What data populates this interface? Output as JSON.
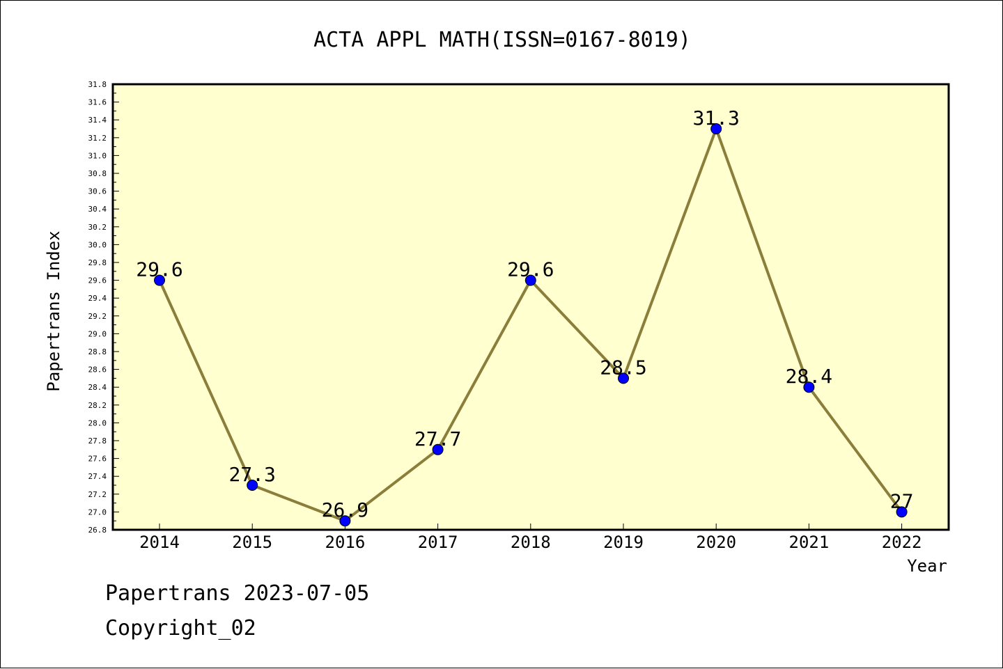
{
  "footer": {
    "date_line": "Papertrans 2023-07-05",
    "copyright": "Copyright_02"
  },
  "colors": {
    "plot_background": "#FFFFD0",
    "line": "#8B7D3A",
    "marker": "#0000FF"
  },
  "chart_data": {
    "type": "line",
    "title": "ACTA APPL MATH(ISSN=0167-8019)",
    "xlabel": "Year",
    "ylabel": "Papertrans Index",
    "categories": [
      "2014",
      "2015",
      "2016",
      "2017",
      "2018",
      "2019",
      "2020",
      "2021",
      "2022"
    ],
    "series": [
      {
        "values": [
          29.6,
          27.3,
          26.9,
          27.7,
          29.6,
          28.5,
          31.3,
          28.4,
          27.0
        ],
        "labels": [
          "29.6",
          "27.3",
          "26.9",
          "27.7",
          "29.6",
          "28.5",
          "31.3",
          "28.4",
          "27"
        ]
      }
    ],
    "ylim": [
      26.8,
      31.8
    ],
    "yticks": [
      "26.8",
      "27.0",
      "27.2",
      "27.4",
      "27.6",
      "27.8",
      "28.0",
      "28.2",
      "28.4",
      "28.6",
      "28.8",
      "29.0",
      "29.2",
      "29.4",
      "29.6",
      "29.8",
      "30.0",
      "30.2",
      "30.4",
      "30.6",
      "30.8",
      "31.0",
      "31.2",
      "31.4",
      "31.6",
      "31.8"
    ],
    "grid": false,
    "legend": false
  }
}
